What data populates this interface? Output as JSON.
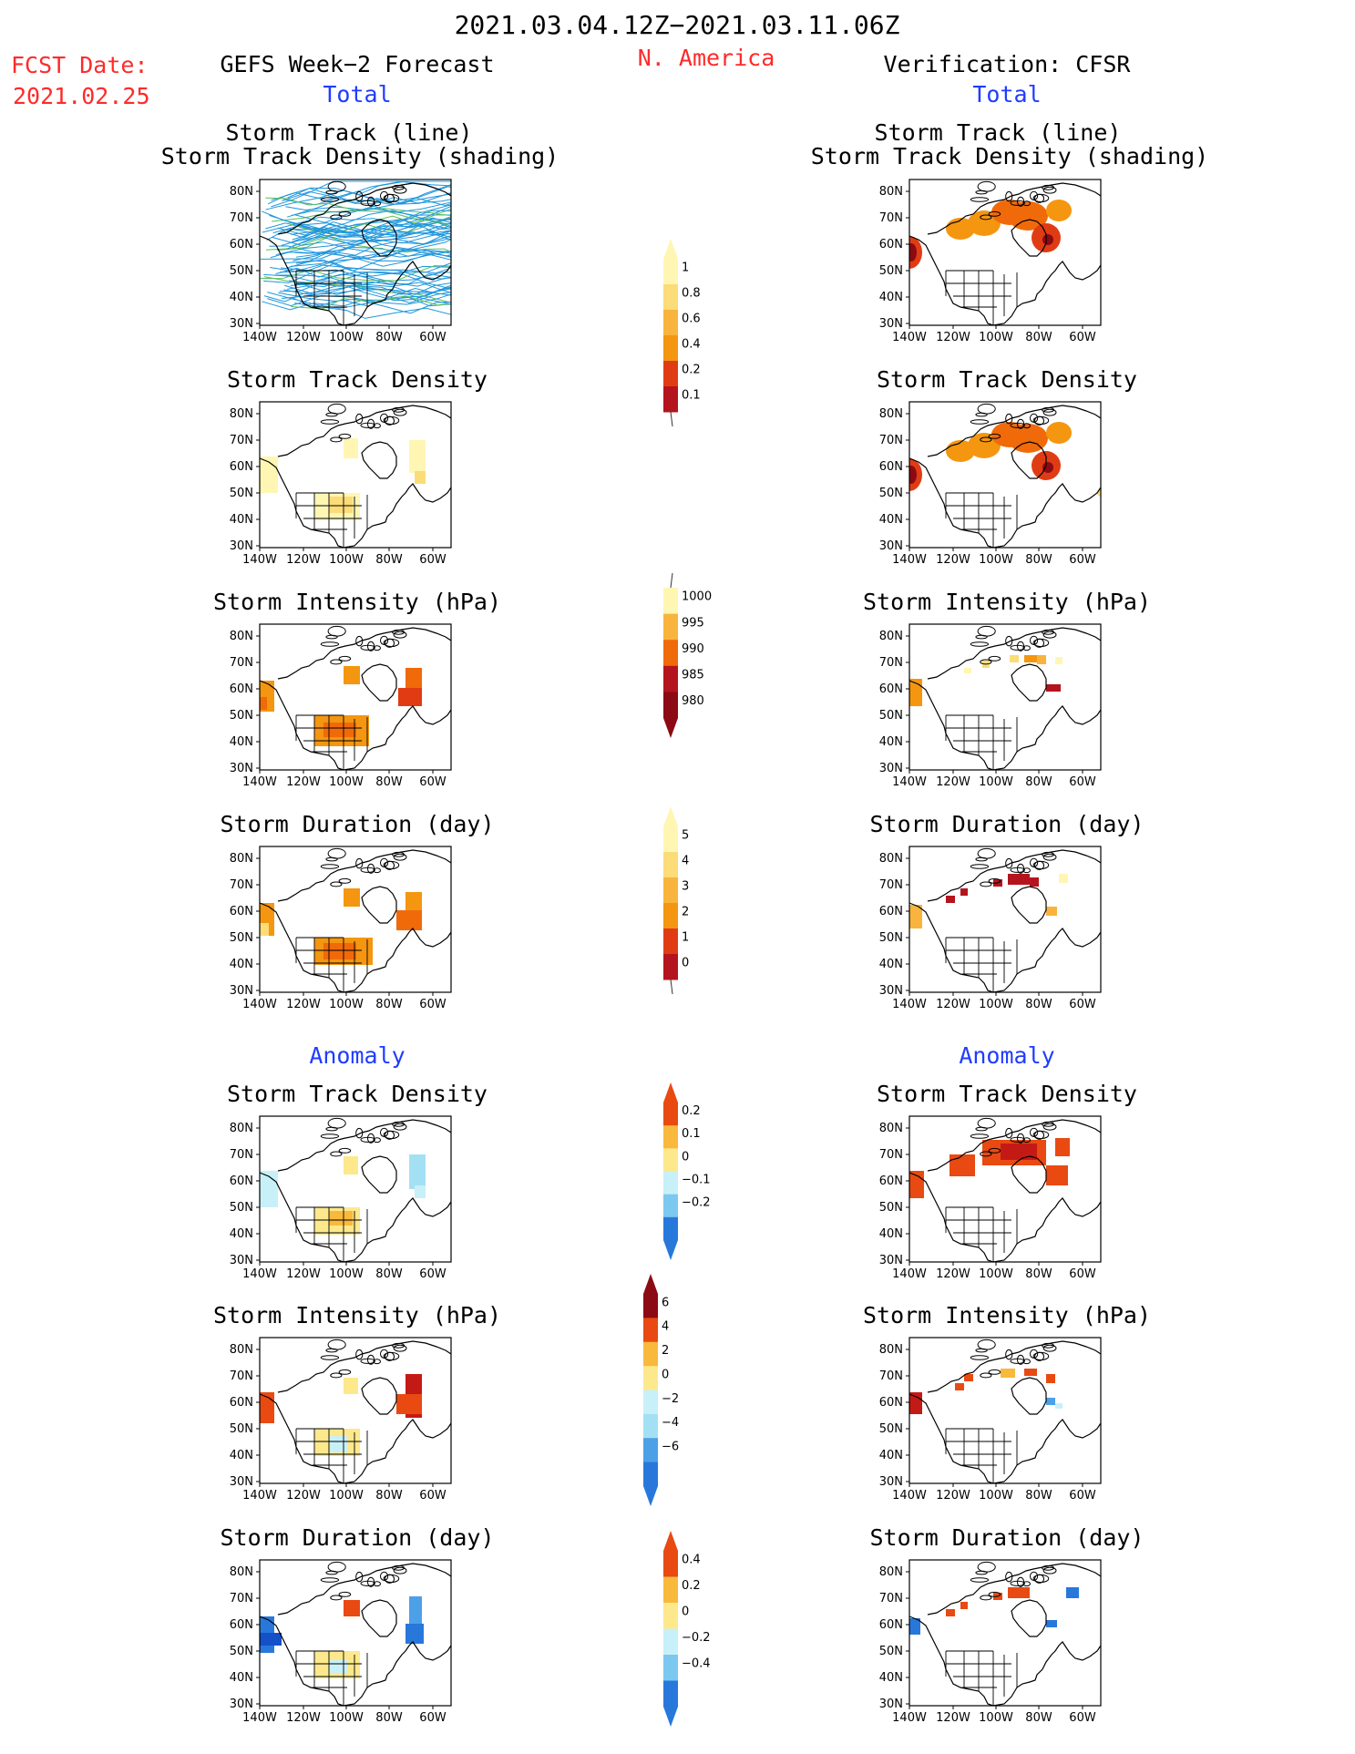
{
  "header": {
    "date_range": "2021.03.04.12Z−2021.03.11.06Z",
    "region": "N. America",
    "fcst_label": "FCST Date:",
    "fcst_date": "2021.02.25",
    "forecast_title": "GEFS Week−2 Forecast",
    "verification_title": "Verification: CFSR",
    "total_label": "Total",
    "anomaly_label": "Anomaly"
  },
  "axes": {
    "lat_ticks": [
      "80N",
      "70N",
      "60N",
      "50N",
      "40N",
      "30N"
    ],
    "lon_ticks": [
      "140W",
      "120W",
      "100W",
      "80W",
      "60W"
    ]
  },
  "panels": {
    "track_line_1": "Storm Track (line)",
    "track_line_2": "Storm Track Density (shading)",
    "density": "Storm Track Density",
    "intensity": "Storm Intensity (hPa)",
    "duration": "Storm Duration (day)"
  },
  "colorbars": {
    "density_total": [
      "1",
      "0.8",
      "0.6",
      "0.4",
      "0.2",
      "0.1"
    ],
    "intensity_total": [
      "1000",
      "995",
      "990",
      "985",
      "980"
    ],
    "duration_total": [
      "5",
      "4",
      "3",
      "2",
      "1",
      "0"
    ],
    "density_anom": [
      "0.2",
      "0.1",
      "0",
      "−0.1",
      "−0.2"
    ],
    "intensity_anom": [
      "6",
      "4",
      "2",
      "0",
      "−2",
      "−4",
      "−6"
    ],
    "duration_anom": [
      "0.4",
      "0.2",
      "0",
      "−0.2",
      "−0.4"
    ]
  },
  "colors": {
    "warm": [
      "#fff6b4",
      "#fbdc78",
      "#f8b43c",
      "#f49610",
      "#f06a0a",
      "#e03c14",
      "#b4141e",
      "#8c0a14"
    ],
    "anom_pos": [
      "#fde88c",
      "#f9b93c",
      "#f3841c",
      "#e84a12",
      "#c41a16",
      "#8c0a14"
    ],
    "anom_neg": [
      "#c8f0f8",
      "#a4e0f4",
      "#7cc8f0",
      "#4ca0e8",
      "#2878dc",
      "#1450c8"
    ],
    "track_line": "#1e96dc",
    "track_line_alt": "#5abe5a"
  }
}
